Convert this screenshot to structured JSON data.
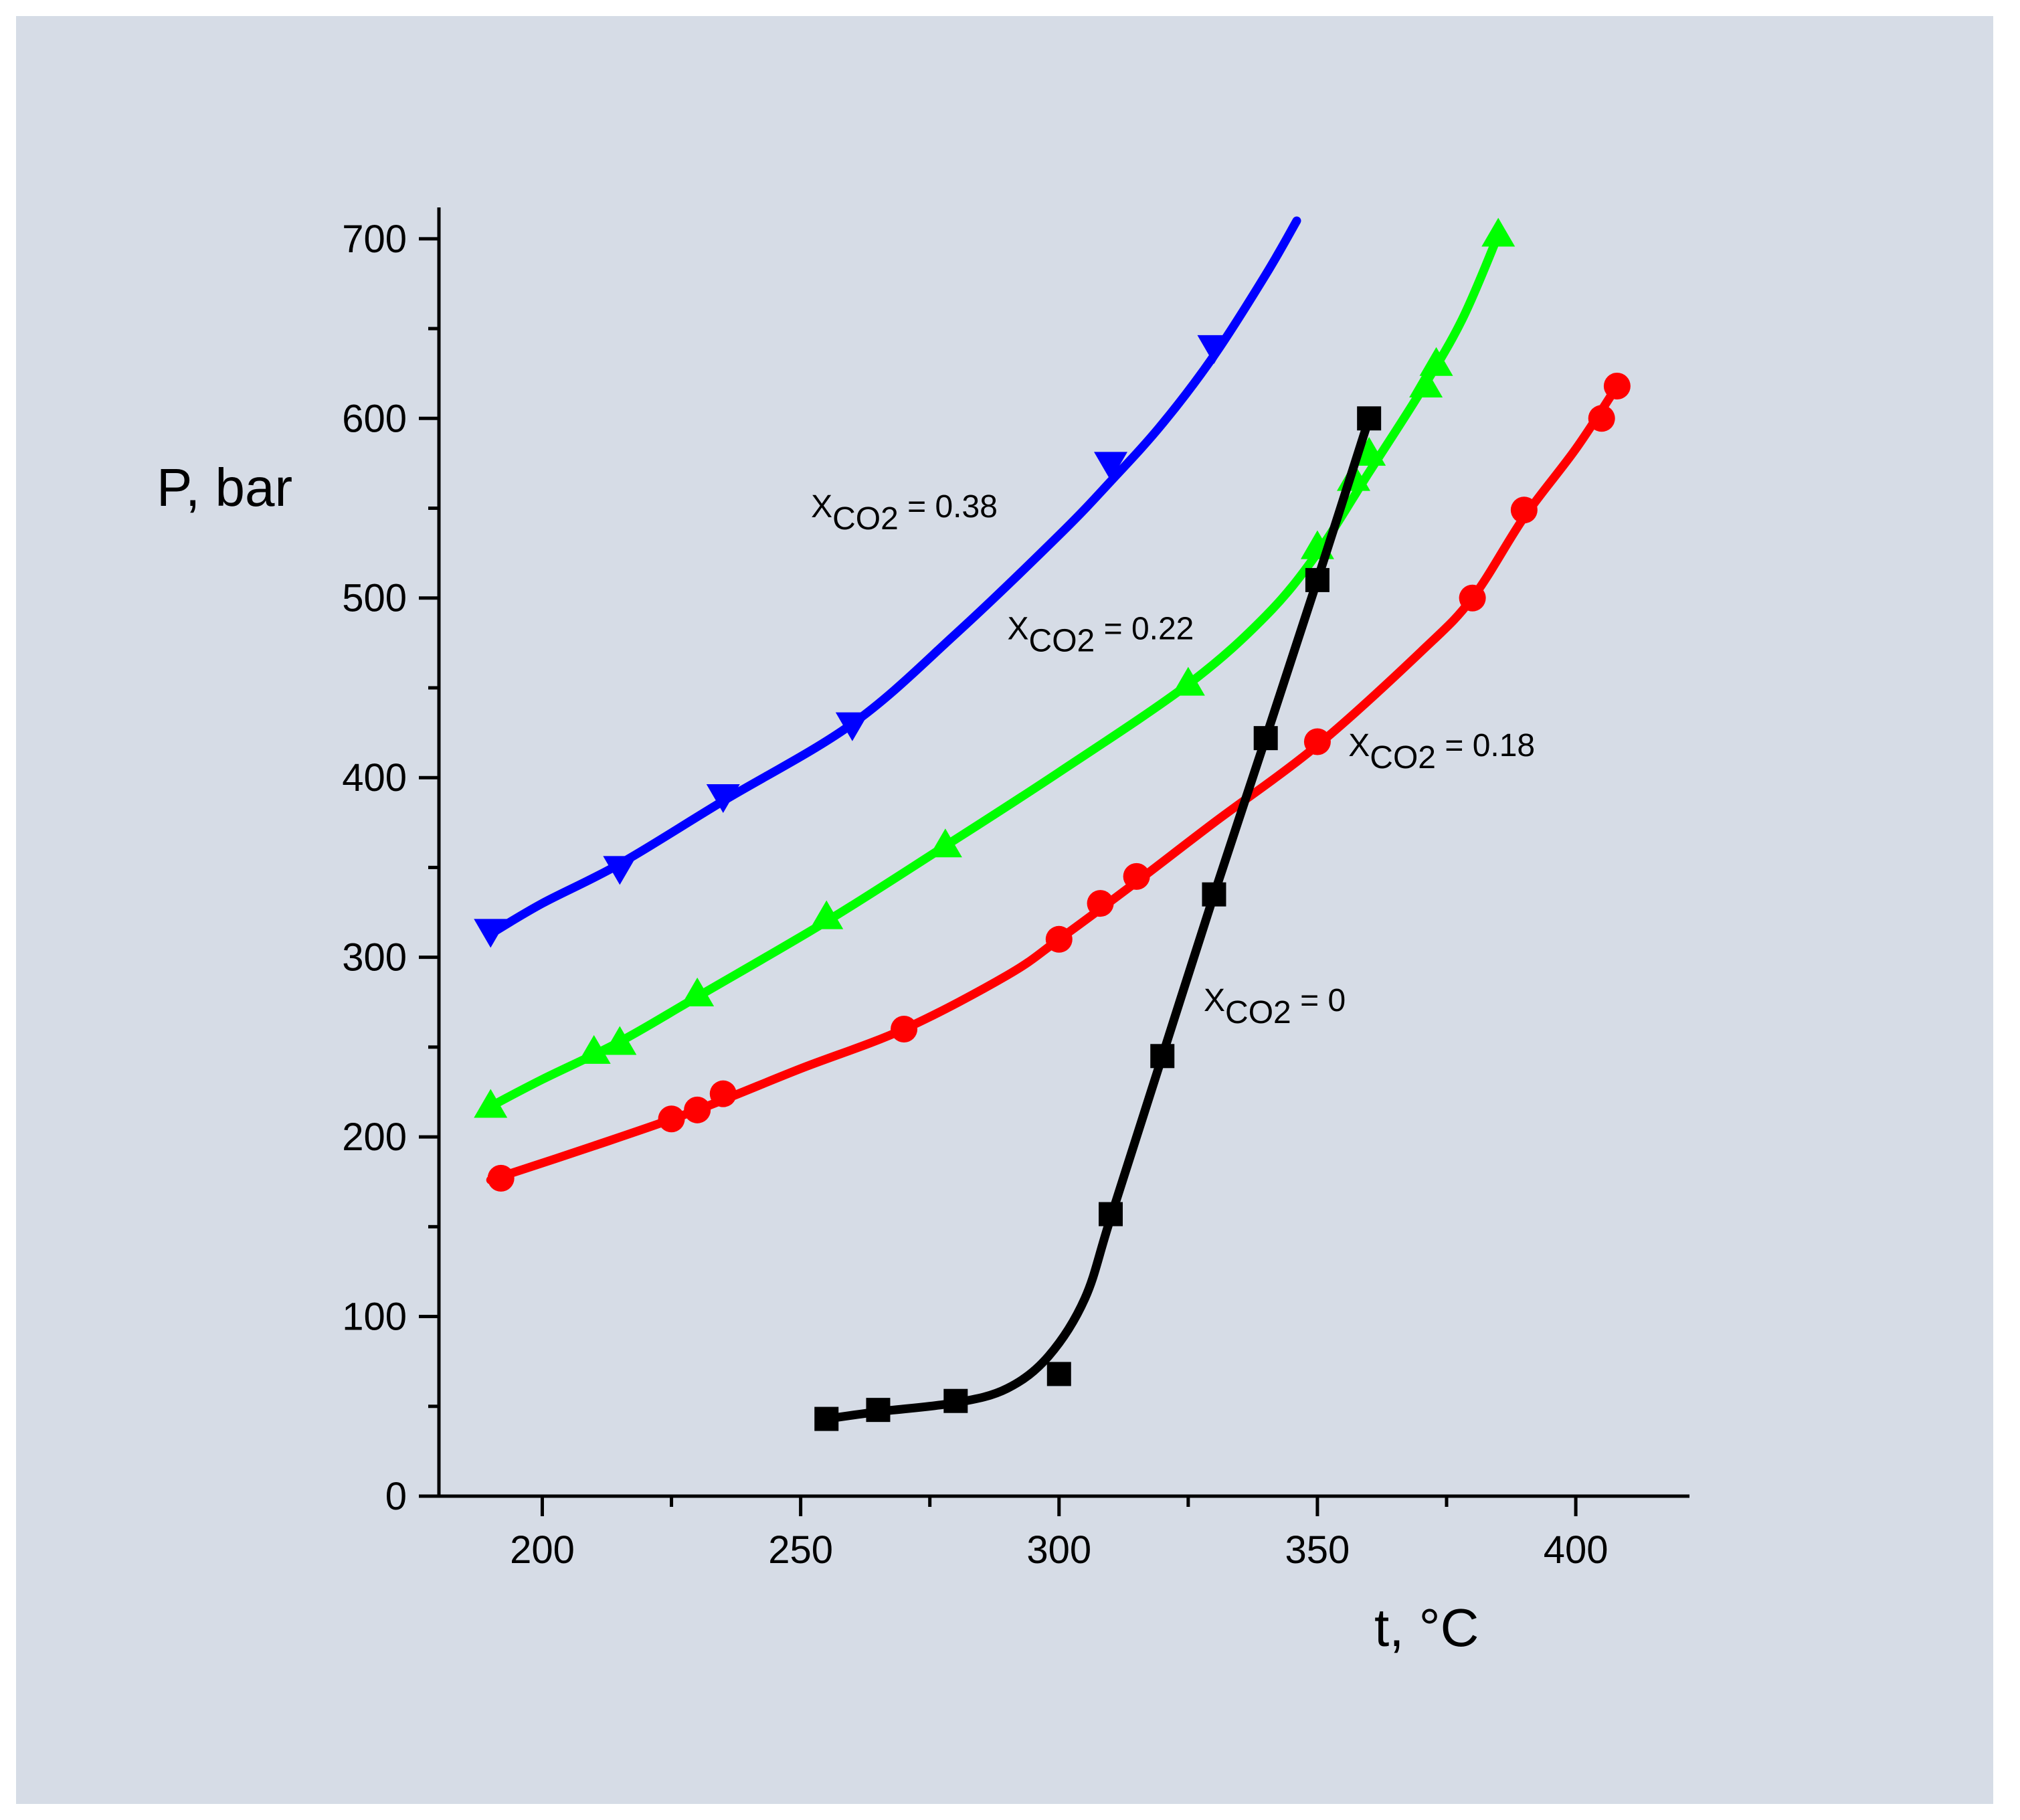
{
  "chart_data": {
    "type": "line",
    "title": "",
    "xlabel": "t, °C",
    "ylabel": "P, bar",
    "xlim": [
      180,
      422
    ],
    "ylim": [
      0,
      710
    ],
    "x_ticks": [
      200,
      250,
      300,
      350,
      400
    ],
    "y_ticks": [
      0,
      100,
      200,
      300,
      400,
      500,
      600,
      700
    ],
    "x_tick_labels": [
      "200",
      "250",
      "300",
      "350",
      "400"
    ],
    "y_tick_labels": [
      "0",
      "100",
      "200",
      "300",
      "400",
      "500",
      "600",
      "700"
    ],
    "grid": false,
    "series": [
      {
        "name": "X_CO2 = 0.38",
        "color": "#0000ff",
        "marker": "triangle-down",
        "points": [
          [
            190,
            315
          ],
          [
            215,
            350
          ],
          [
            235,
            390
          ],
          [
            260,
            430
          ],
          [
            310,
            575
          ],
          [
            330,
            640
          ]
        ],
        "curve": [
          [
            190,
            313
          ],
          [
            200,
            330
          ],
          [
            215,
            352
          ],
          [
            235,
            387
          ],
          [
            260,
            430
          ],
          [
            280,
            480
          ],
          [
            300,
            535
          ],
          [
            310,
            565
          ],
          [
            320,
            597
          ],
          [
            330,
            635
          ],
          [
            340,
            680
          ],
          [
            346,
            710
          ]
        ]
      },
      {
        "name": "X_CO2 = 0.22",
        "color": "#00ff00",
        "marker": "triangle-up",
        "points": [
          [
            190,
            217
          ],
          [
            210,
            247
          ],
          [
            215,
            252
          ],
          [
            230,
            279
          ],
          [
            255,
            322
          ],
          [
            278,
            362
          ],
          [
            325,
            452
          ],
          [
            350,
            528
          ],
          [
            357,
            566
          ],
          [
            360,
            580
          ],
          [
            371,
            618
          ],
          [
            373,
            630
          ],
          [
            385,
            702
          ]
        ],
        "curve": [
          [
            190,
            217
          ],
          [
            200,
            232
          ],
          [
            215,
            253
          ],
          [
            230,
            278
          ],
          [
            255,
            320
          ],
          [
            278,
            362
          ],
          [
            300,
            403
          ],
          [
            325,
            452
          ],
          [
            340,
            490
          ],
          [
            350,
            525
          ],
          [
            360,
            570
          ],
          [
            370,
            615
          ],
          [
            378,
            655
          ],
          [
            385,
            702
          ]
        ]
      },
      {
        "name": "X_CO2 = 0.18",
        "color": "#ff0000",
        "marker": "circle",
        "points": [
          [
            192,
            177
          ],
          [
            225,
            210
          ],
          [
            230,
            215
          ],
          [
            235,
            224
          ],
          [
            270,
            260
          ],
          [
            300,
            310
          ],
          [
            308,
            330
          ],
          [
            315,
            345
          ],
          [
            350,
            420
          ],
          [
            380,
            500
          ],
          [
            390,
            549
          ],
          [
            405,
            600
          ],
          [
            408,
            618
          ]
        ],
        "curve": [
          [
            190,
            176
          ],
          [
            210,
            195
          ],
          [
            230,
            215
          ],
          [
            250,
            238
          ],
          [
            270,
            260
          ],
          [
            290,
            290
          ],
          [
            300,
            310
          ],
          [
            315,
            342
          ],
          [
            330,
            375
          ],
          [
            350,
            418
          ],
          [
            370,
            470
          ],
          [
            380,
            500
          ],
          [
            390,
            545
          ],
          [
            400,
            583
          ],
          [
            408,
            618
          ]
        ]
      },
      {
        "name": "X_CO2 = 0",
        "color": "#000000",
        "marker": "square",
        "points": [
          [
            255,
            43
          ],
          [
            265,
            48
          ],
          [
            280,
            53
          ],
          [
            300,
            68
          ],
          [
            310,
            157
          ],
          [
            320,
            245
          ],
          [
            330,
            335
          ],
          [
            340,
            422
          ],
          [
            350,
            510
          ],
          [
            360,
            600
          ]
        ],
        "curve": [
          [
            255,
            43
          ],
          [
            265,
            47
          ],
          [
            280,
            52
          ],
          [
            290,
            60
          ],
          [
            298,
            78
          ],
          [
            305,
            110
          ],
          [
            310,
            155
          ],
          [
            320,
            245
          ],
          [
            330,
            335
          ],
          [
            340,
            422
          ],
          [
            350,
            510
          ],
          [
            360,
            600
          ]
        ]
      }
    ],
    "annotations": [
      {
        "base": "X",
        "sub": "CO2",
        "suffix": " = 0.38",
        "at": [
          252,
          545
        ]
      },
      {
        "base": "X",
        "sub": "CO2",
        "suffix": " = 0.22",
        "at": [
          290,
          477
        ]
      },
      {
        "base": "X",
        "sub": "CO2",
        "suffix": " = 0.18",
        "at": [
          356,
          412
        ]
      },
      {
        "base": "X",
        "sub": "CO2",
        "suffix": " = 0",
        "at": [
          328,
          270
        ]
      }
    ]
  }
}
